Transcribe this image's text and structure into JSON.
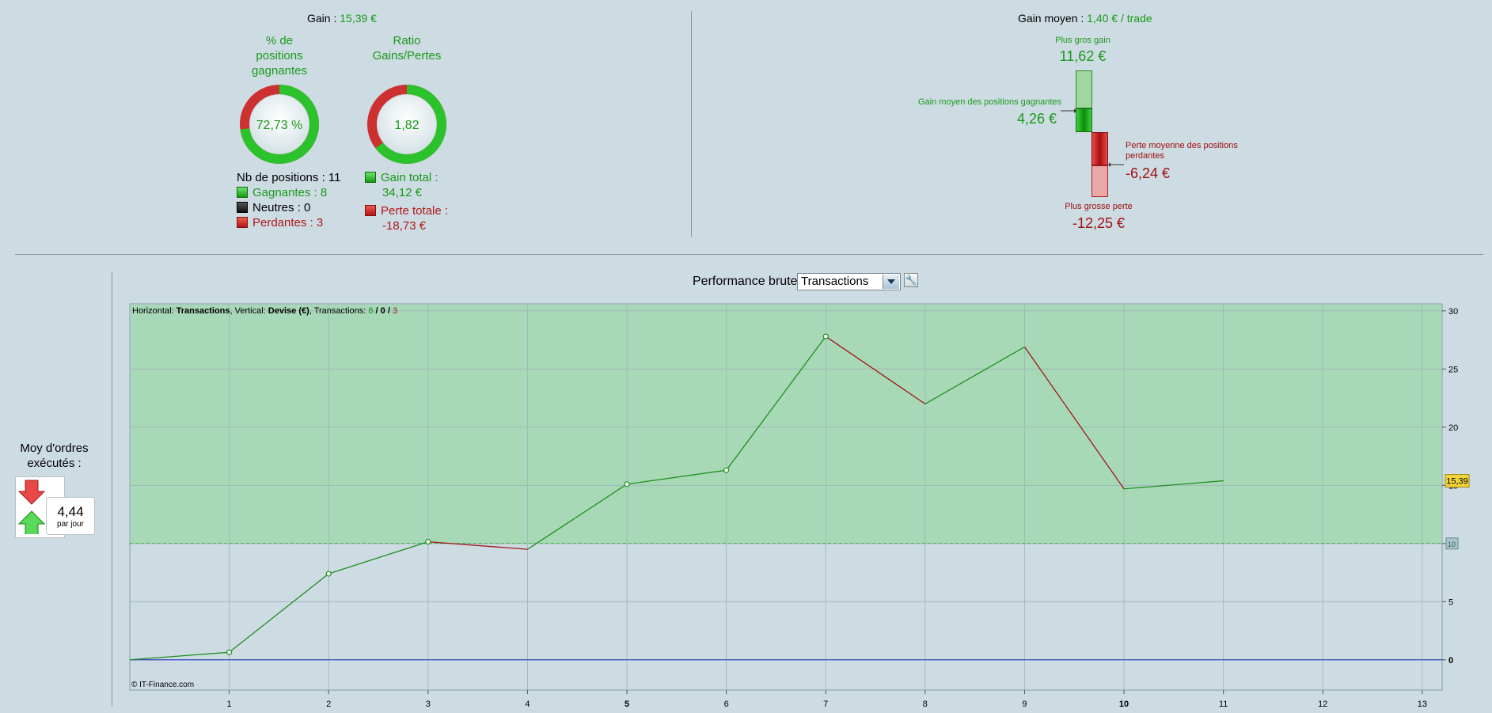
{
  "summary": {
    "gain_label": "Gain :",
    "gain_value": "15,39 €",
    "pct_title_lines": [
      "% de",
      "positions",
      "gagnantes"
    ],
    "pct_value": "72,73 %",
    "pct_fraction": 0.7273,
    "ratio_title_lines": [
      "Ratio",
      "Gains/Pertes"
    ],
    "ratio_value": "1,82",
    "ratio_fraction": 0.645,
    "nb_positions": "Nb de positions : 11",
    "gagnantes": "Gagnantes : 8",
    "neutres": "Neutres : 0",
    "perdantes": "Perdantes : 3",
    "gain_total_label": "Gain total :",
    "gain_total_value": "34,12 €",
    "perte_totale_label": "Perte totale :",
    "perte_totale_value": "-18,73 €"
  },
  "gain_moyen": {
    "label": "Gain moyen :",
    "value": "1,40 € / trade",
    "plus_gros_gain_label": "Plus gros gain",
    "plus_gros_gain_value": "11,62 €",
    "gain_moyen_gagnantes_label": "Gain moyen des positions gagnantes",
    "gain_moyen_gagnantes_value": "4,26 €",
    "perte_moyenne_label_1": "Perte moyenne des positions",
    "perte_moyenne_label_2": "perdantes",
    "perte_moyenne_value": "-6,24 €",
    "plus_grosse_perte_label": "Plus grosse perte",
    "plus_grosse_perte_value": "-12,25 €"
  },
  "orders": {
    "label_1": "Moy d'ordres",
    "label_2": "exécutés :",
    "value": "4,44",
    "unit": "par jour"
  },
  "perf": {
    "title": "Performance brute",
    "select_value": "Transactions"
  },
  "chart_data": {
    "type": "line",
    "info": {
      "h_label": "Horizontal: ",
      "h_value": "Transactions",
      "v_label": ", Vertical: ",
      "v_value": "Devise (€)",
      "t_label": ", Transactions: ",
      "t_win": "8",
      "t_sep1": " / ",
      "t_neutral": "0",
      "t_sep2": " / ",
      "t_loss": "3"
    },
    "copyright": "© IT-Finance.com",
    "x": [
      0,
      1,
      2,
      3,
      4,
      5,
      6,
      7,
      8,
      9,
      10,
      11
    ],
    "y": [
      0,
      0.65,
      7.4,
      10.15,
      9.5,
      15.1,
      16.3,
      27.8,
      22.0,
      26.9,
      14.7,
      15.39
    ],
    "segment_results": [
      "win",
      "win",
      "win",
      "loss",
      "win",
      "win",
      "win",
      "loss",
      "win",
      "loss",
      "win"
    ],
    "xlim": [
      0,
      13.2
    ],
    "ylim": [
      -2.6,
      30.6
    ],
    "x_ticks": [
      "1",
      "2",
      "3",
      "4",
      "5",
      "6",
      "7",
      "8",
      "9",
      "10",
      "11",
      "12",
      "13"
    ],
    "x_ticks_bold": [
      "5",
      "10"
    ],
    "y_ticks": [
      "0",
      "5",
      "10",
      "15",
      "20",
      "25",
      "30"
    ],
    "y_tick_values": [
      0,
      5,
      10,
      15,
      20,
      25,
      30
    ],
    "threshold": 10,
    "threshold_label": "10",
    "last_value_label": "15,39",
    "last_value": 15.39,
    "colors": {
      "win": "#1f8f1f",
      "loss": "#a01818",
      "zero_line": "#3344bb",
      "fill": "#a8d9b7",
      "badge": "#f3d43a"
    }
  }
}
